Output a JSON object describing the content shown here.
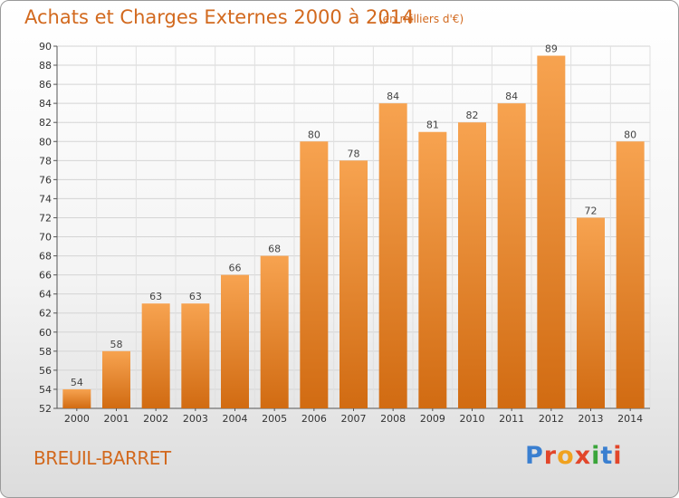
{
  "header": {
    "title": "Achats et Charges Externes 2000 à 2014",
    "subtitle": "(en milliers d'€)"
  },
  "footer": {
    "commune": "BREUIL-BARRET",
    "logo_letters": [
      "P",
      "r",
      "o",
      "x",
      "i",
      "t",
      "i"
    ],
    "logo_colors": [
      "#3a7fd0",
      "#e2462a",
      "#f0a21f",
      "#e2462a",
      "#3aa53a",
      "#3a7fd0",
      "#e2462a"
    ]
  },
  "chart_data": {
    "type": "bar",
    "title": "Achats et Charges Externes 2000 à 2014",
    "subtitle": "(en milliers d'€)",
    "categories": [
      "2000",
      "2001",
      "2002",
      "2003",
      "2004",
      "2005",
      "2006",
      "2007",
      "2008",
      "2009",
      "2010",
      "2011",
      "2012",
      "2013",
      "2014"
    ],
    "values": [
      54,
      58,
      63,
      63,
      66,
      68,
      80,
      78,
      84,
      81,
      82,
      84,
      89,
      72,
      80
    ],
    "ylim": [
      52,
      90
    ],
    "yticks": [
      52,
      54,
      56,
      58,
      60,
      62,
      64,
      66,
      68,
      70,
      72,
      74,
      76,
      78,
      80,
      82,
      84,
      86,
      88,
      90
    ],
    "grid": true,
    "bar_color_top": "#f7a350",
    "bar_color_bottom": "#d16b12"
  }
}
